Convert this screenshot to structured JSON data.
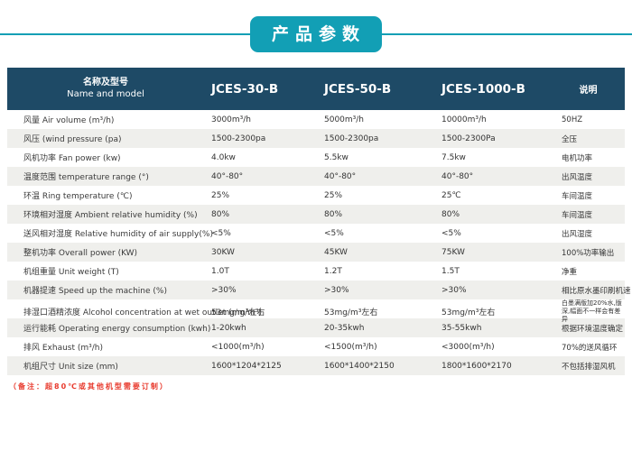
{
  "title": {
    "text": "产品参数"
  },
  "table": {
    "header": {
      "name_zh": "名称及型号",
      "name_en": "Name and model",
      "models": [
        "JCES-30-B",
        "JCES-50-B",
        "JCES-1000-B"
      ],
      "note": "说明"
    },
    "rows": [
      {
        "label": "风量 Air volume (m³/h)",
        "values": [
          "3000m³/h",
          "5000m³/h",
          "10000m³/h"
        ],
        "note": "50HZ"
      },
      {
        "label": "风压 (wind pressure (pa)",
        "values": [
          "1500-2300pa",
          "1500-2300pa",
          "1500-2300Pa"
        ],
        "note": "全压"
      },
      {
        "label": "风机功率 Fan power (kw)",
        "values": [
          "4.0kw",
          "5.5kw",
          "7.5kw"
        ],
        "note": "电机功率"
      },
      {
        "label": "温度范围 temperature range (°)",
        "values": [
          "40°-80°",
          "40°-80°",
          "40°-80°"
        ],
        "note": "出风温度"
      },
      {
        "label": "环温 Ring temperature (℃)",
        "values": [
          "25%",
          "25%",
          "25℃"
        ],
        "note": "车间温度"
      },
      {
        "label": "环境相对湿度 Ambient relative humidity (%)",
        "values": [
          "80%",
          "80%",
          "80%"
        ],
        "note": "车间温度"
      },
      {
        "label": "送风相对湿度 Relative humidity of air supply(%)",
        "values": [
          "<5%",
          "<5%",
          "<5%"
        ],
        "note": "出风湿度"
      },
      {
        "label": "整机功率 Overall power (KW)",
        "values": [
          "30KW",
          "45KW",
          "75KW"
        ],
        "note": "100%功率输出"
      },
      {
        "label": "机组重量 Unit weight (T)",
        "values": [
          "1.0T",
          "1.2T",
          "1.5T"
        ],
        "note": "净重"
      },
      {
        "label": "机器提速 Speed up the machine (%)",
        "values": [
          ">30%",
          ">30%",
          ">30%"
        ],
        "note": "相比原水墨印刷机速"
      },
      {
        "label": "排湿口酒精浓度 Alcohol concentration at wet outlet (mg/m³)",
        "values": [
          "53mg/m³左右",
          "53mg/m³左右",
          "53mg/m³左右"
        ],
        "note": "白墨满版加20%水,版深,幅面不一样会有差异"
      },
      {
        "label": "运行能耗 Operating energy consumption (kwh)",
        "values": [
          "1-20kwh",
          "20-35kwh",
          "35-55kwh"
        ],
        "note": "根据环境温度确定"
      },
      {
        "label": "排风 Exhaust (m³/h)",
        "values": [
          "<1000(m³/h)",
          "<1500(m³/h)",
          "<3000(m³/h)"
        ],
        "note": "70%的送风循环"
      },
      {
        "label": "机组尺寸 Unit size (mm)",
        "values": [
          "1600*1204*2125",
          "1600*1400*2150",
          "1800*1600*2170"
        ],
        "note": "不包括排湿风机"
      }
    ]
  },
  "footer_note": "（备注：超80℃或其他机型需要订制）",
  "colors": {
    "accent_teal": "#129fb5",
    "header_navy": "#1e4a66",
    "row_alt_gray": "#efefec",
    "note_red": "#e8392c",
    "text": "#3b3b3b"
  }
}
